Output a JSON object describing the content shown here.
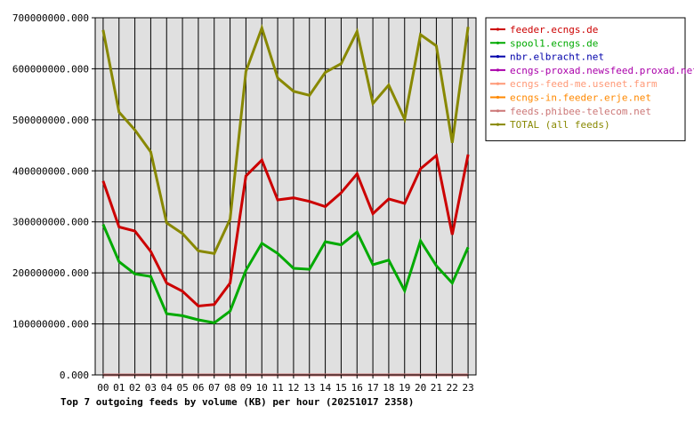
{
  "chart_data": {
    "type": "line",
    "title": "Top 7 outgoing feeds by volume (KB) per hour (20251017 2358)",
    "xlabel": "",
    "ylabel": "",
    "categories": [
      "00",
      "01",
      "02",
      "03",
      "04",
      "05",
      "06",
      "07",
      "08",
      "09",
      "10",
      "11",
      "12",
      "13",
      "14",
      "15",
      "16",
      "17",
      "18",
      "19",
      "20",
      "21",
      "22",
      "23"
    ],
    "y_ticks": [
      "0.000",
      "100000000.000",
      "200000000.000",
      "300000000.000",
      "400000000.000",
      "500000000.000",
      "600000000.000",
      "700000000.000"
    ],
    "ylim": [
      0,
      700000000
    ],
    "grid": true,
    "legend_position": "right",
    "plot_background": "#e0e0e0",
    "series": [
      {
        "name": "feeder.ecngs.de",
        "color": "#cc0000",
        "values": [
          380000000,
          290000000,
          282000000,
          242000000,
          180000000,
          164000000,
          135000000,
          138000000,
          180000000,
          390000000,
          421000000,
          343000000,
          347000000,
          340000000,
          330000000,
          357000000,
          394000000,
          316000000,
          345000000,
          336000000,
          404000000,
          430000000,
          275000000,
          432000000
        ]
      },
      {
        "name": "spool1.ecngs.de",
        "color": "#00aa00",
        "values": [
          295000000,
          222000000,
          198000000,
          193000000,
          120000000,
          116000000,
          108000000,
          102000000,
          125000000,
          205000000,
          258000000,
          238000000,
          209000000,
          207000000,
          261000000,
          255000000,
          280000000,
          216000000,
          225000000,
          165000000,
          263000000,
          214000000,
          180000000,
          250000000
        ]
      },
      {
        "name": "nbr.elbracht.net",
        "color": "#0000aa",
        "values": [
          0,
          0,
          0,
          0,
          0,
          0,
          0,
          0,
          0,
          0,
          0,
          0,
          0,
          0,
          0,
          0,
          0,
          0,
          0,
          0,
          0,
          0,
          0,
          0
        ]
      },
      {
        "name": "ecngs-proxad.newsfeed.proxad.net",
        "color": "#aa00aa",
        "values": [
          0,
          0,
          0,
          0,
          0,
          0,
          0,
          0,
          0,
          0,
          0,
          0,
          0,
          0,
          0,
          0,
          0,
          0,
          0,
          0,
          0,
          0,
          0,
          0
        ]
      },
      {
        "name": "ecngs-feed-me.usenet.farm",
        "color": "#ff9977",
        "values": [
          0,
          0,
          0,
          0,
          0,
          0,
          0,
          0,
          0,
          0,
          0,
          0,
          0,
          0,
          0,
          0,
          0,
          0,
          0,
          0,
          0,
          0,
          0,
          0
        ]
      },
      {
        "name": "ecngs-in.feeder.erje.net",
        "color": "#ff8800",
        "values": [
          0,
          0,
          0,
          0,
          0,
          0,
          0,
          0,
          0,
          0,
          0,
          0,
          0,
          0,
          0,
          0,
          0,
          0,
          0,
          0,
          0,
          0,
          0,
          0
        ]
      },
      {
        "name": "feeds.phibee-telecom.net",
        "color": "#cc7777",
        "values": [
          0,
          0,
          0,
          0,
          0,
          0,
          0,
          0,
          0,
          0,
          0,
          0,
          0,
          0,
          0,
          0,
          0,
          0,
          0,
          0,
          0,
          0,
          0,
          0
        ]
      },
      {
        "name": "TOTAL (all feeds)",
        "color": "#888800",
        "values": [
          676000000,
          515000000,
          480000000,
          437000000,
          298000000,
          277000000,
          243000000,
          238000000,
          305000000,
          595000000,
          680000000,
          582000000,
          556000000,
          548000000,
          593000000,
          610000000,
          673000000,
          532000000,
          568000000,
          501000000,
          667000000,
          645000000,
          455000000,
          682000000
        ]
      }
    ]
  }
}
